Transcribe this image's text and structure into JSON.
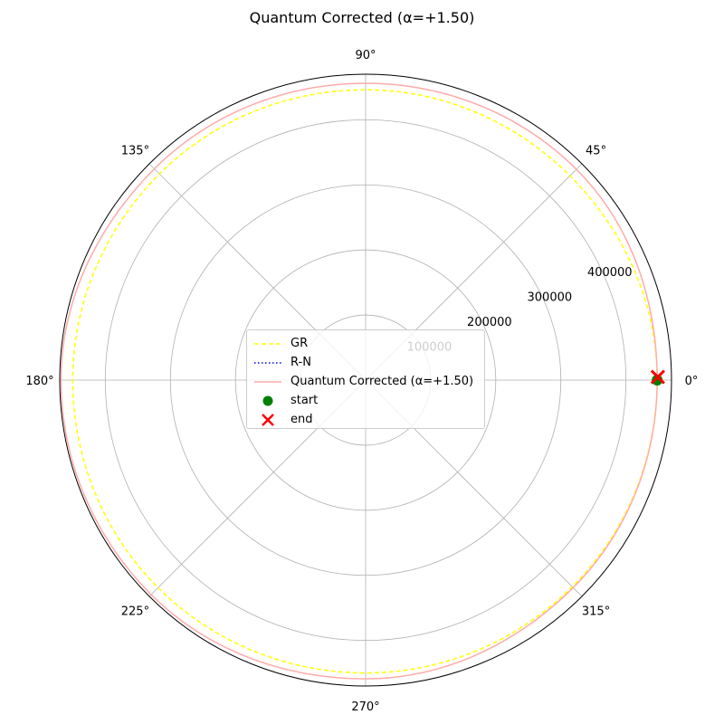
{
  "chart_data": {
    "type": "line",
    "projection": "polar",
    "title": "Quantum Corrected (α=+1.50)",
    "angle_ticks": [
      "0°",
      "45°",
      "90°",
      "135°",
      "180°",
      "225°",
      "270°",
      "315°"
    ],
    "angle_tick_values_deg": [
      0,
      45,
      90,
      135,
      180,
      225,
      270,
      315
    ],
    "r_ticks": [
      "100000",
      "200000",
      "300000",
      "400000"
    ],
    "r_tick_values": [
      100000,
      200000,
      300000,
      400000
    ],
    "rlim": [
      0,
      470000
    ],
    "grid": true,
    "legend": {
      "position": "center",
      "entries": [
        "GR",
        "R-N",
        "Quantum Corrected (α=+1.50)",
        "start",
        "end"
      ]
    },
    "series": [
      {
        "name": "GR",
        "color": "#ffff00",
        "linestyle": "dashed",
        "points": [
          {
            "theta": 0,
            "r": 448000
          },
          {
            "theta": 45,
            "r": 444000
          },
          {
            "theta": 90,
            "r": 446000
          },
          {
            "theta": 135,
            "r": 448000
          },
          {
            "theta": 180,
            "r": 450000
          },
          {
            "theta": 225,
            "r": 451000
          },
          {
            "theta": 270,
            "r": 450000
          },
          {
            "theta": 315,
            "r": 449000
          },
          {
            "theta": 360,
            "r": 448000
          }
        ]
      },
      {
        "name": "R-N",
        "color": "#0000ff",
        "linestyle": "dotted",
        "points": []
      },
      {
        "name": "Quantum Corrected (α=+1.50)",
        "color": "#ffaaaa",
        "linestyle": "solid",
        "points": [
          {
            "theta": 0,
            "r": 448000
          },
          {
            "theta": 45,
            "r": 458000
          },
          {
            "theta": 90,
            "r": 456000
          },
          {
            "theta": 135,
            "r": 459000
          },
          {
            "theta": 180,
            "r": 468000
          },
          {
            "theta": 225,
            "r": 466000
          },
          {
            "theta": 270,
            "r": 459000
          },
          {
            "theta": 315,
            "r": 451000
          },
          {
            "theta": 360,
            "r": 448000
          }
        ]
      }
    ],
    "markers": [
      {
        "name": "start",
        "theta": 0,
        "r": 448000,
        "color": "#008000",
        "shape": "circle"
      },
      {
        "name": "end",
        "theta": 0.6,
        "r": 449000,
        "color": "#ff0000",
        "shape": "x"
      }
    ]
  }
}
